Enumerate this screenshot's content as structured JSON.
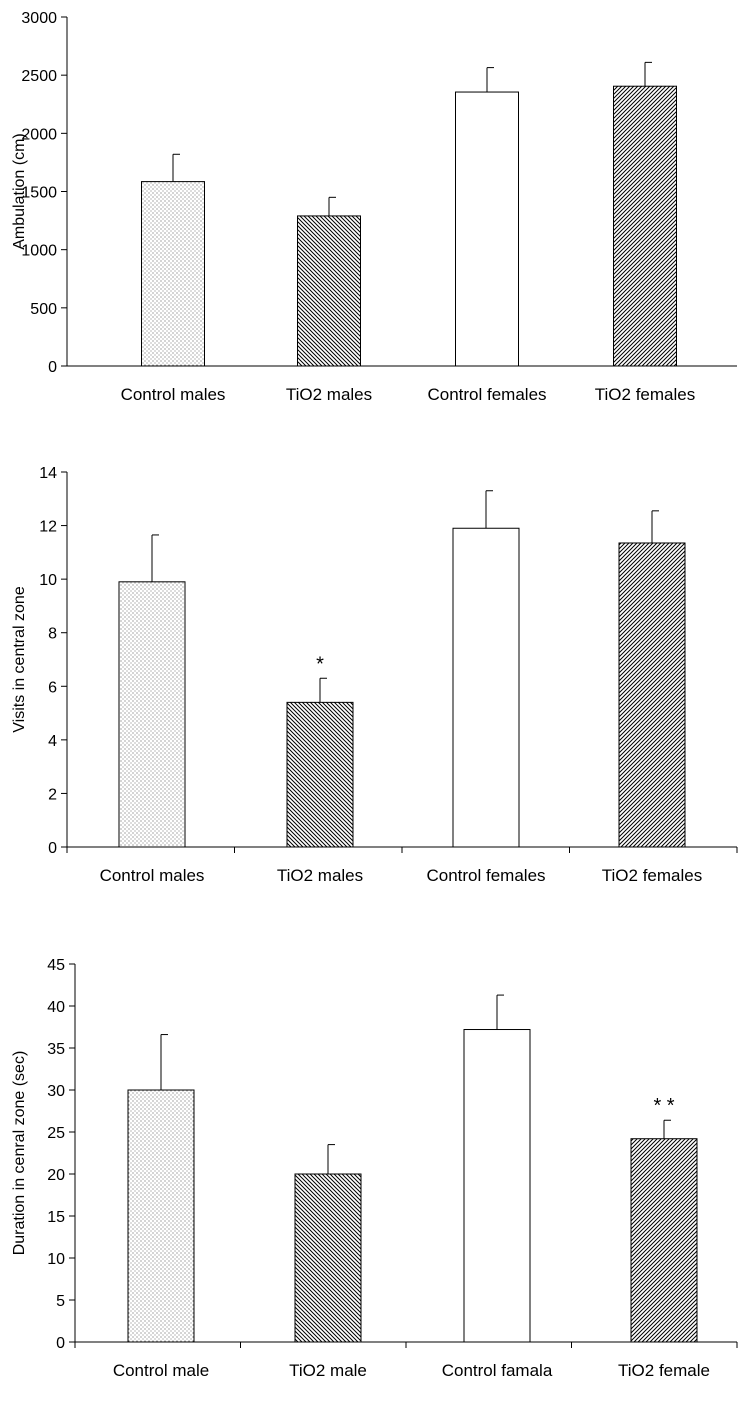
{
  "chart_data": [
    {
      "type": "bar",
      "categories": [
        "Control males",
        "TiO2 males",
        "Control females",
        "TiO2 females"
      ],
      "values": [
        1585,
        1290,
        2355,
        2405
      ],
      "errors": [
        235,
        160,
        210,
        205
      ],
      "ylabel": "Ambulation (cm)",
      "ylim": [
        0,
        3000
      ],
      "yticks": [
        0,
        500,
        1000,
        1500,
        2000,
        2500,
        3000
      ],
      "annotations": [
        "",
        "",
        "",
        ""
      ],
      "patterns": [
        "dots",
        "diag-back",
        "white",
        "diag-fwd"
      ],
      "grid": false
    },
    {
      "type": "bar",
      "categories": [
        "Control males",
        "TiO2 males",
        "Control females",
        "TiO2 females"
      ],
      "values": [
        9.9,
        5.4,
        11.9,
        11.35
      ],
      "errors": [
        1.75,
        0.9,
        1.4,
        1.2
      ],
      "ylabel": "Visits in central zone",
      "ylim": [
        0,
        14
      ],
      "yticks": [
        0,
        2,
        4,
        6,
        8,
        10,
        12,
        14
      ],
      "annotations": [
        "",
        "*",
        "",
        ""
      ],
      "patterns": [
        "dots",
        "diag-back",
        "white",
        "diag-fwd"
      ],
      "grid": false
    },
    {
      "type": "bar",
      "categories": [
        "Control male",
        "TiO2 male",
        "Control famala",
        "TiO2 female"
      ],
      "values": [
        30,
        20,
        37.2,
        24.2
      ],
      "errors": [
        6.6,
        3.5,
        4.1,
        2.2
      ],
      "ylabel": "Duration in cenral zone (sec)",
      "ylim": [
        0,
        45
      ],
      "yticks": [
        0,
        5,
        10,
        15,
        20,
        25,
        30,
        35,
        40,
        45
      ],
      "annotations": [
        "",
        "",
        "",
        "* *"
      ],
      "patterns": [
        "dots",
        "diag-back",
        "white",
        "diag-fwd"
      ],
      "grid": false
    }
  ]
}
